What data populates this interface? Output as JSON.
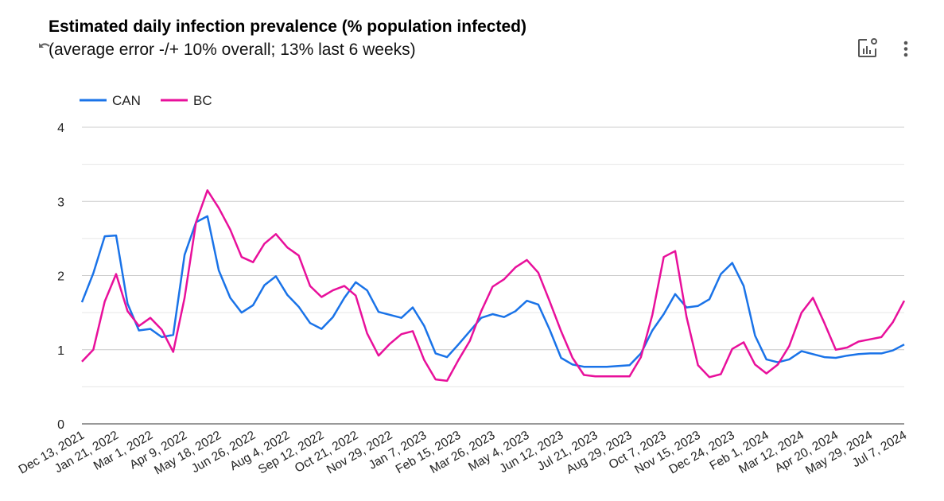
{
  "header": {
    "title": "Estimated daily infection prevalence (% population infected)",
    "subtitle": "(average error -/+ 10% overall; 13% last 6 weeks)",
    "icons": [
      "reset-zoom-icon",
      "chart-settings-icon",
      "more-vert-icon"
    ]
  },
  "chart_data": {
    "type": "line",
    "title": "Estimated daily infection prevalence (% population infected)",
    "subtitle": "(average error -/+ 10% overall; 13% last 6 weeks)",
    "xlabel": "",
    "ylabel": "",
    "ylim": [
      0,
      4
    ],
    "yticks": [
      "0",
      "1",
      "2",
      "3",
      "4"
    ],
    "grid": true,
    "legend": "top-left",
    "xticks": [
      "Dec 13, 2021",
      "Jan 21, 2022",
      "Mar 1, 2022",
      "Apr 9, 2022",
      "May 18, 2022",
      "Jun 26, 2022",
      "Aug 4, 2022",
      "Sep 12, 2022",
      "Oct 21, 2022",
      "Nov 29, 2022",
      "Jan 7, 2023",
      "Feb 15, 2023",
      "Mar 26, 2023",
      "May 4, 2023",
      "Jun 12, 2023",
      "Jul 21, 2023",
      "Aug 29, 2023",
      "Oct 7, 2023",
      "Nov 15, 2023",
      "Dec 24, 2023",
      "Feb 1, 2024",
      "Mar 12, 2024",
      "Apr 20, 2024",
      "May 29, 2024",
      "Jul 7, 2024"
    ],
    "xlim": [
      "2021-12-13",
      "2024-07-07"
    ],
    "x": [
      "2021-12-13",
      "2021-12-26",
      "2022-01-08",
      "2022-01-21",
      "2022-02-03",
      "2022-02-16",
      "2022-03-01",
      "2022-03-14",
      "2022-03-27",
      "2022-04-09",
      "2022-04-22",
      "2022-05-05",
      "2022-05-18",
      "2022-05-31",
      "2022-06-13",
      "2022-06-26",
      "2022-07-09",
      "2022-07-22",
      "2022-08-04",
      "2022-08-17",
      "2022-08-30",
      "2022-09-12",
      "2022-09-25",
      "2022-10-08",
      "2022-10-21",
      "2022-11-03",
      "2022-11-16",
      "2022-11-29",
      "2022-12-12",
      "2022-12-25",
      "2023-01-07",
      "2023-01-20",
      "2023-02-02",
      "2023-02-15",
      "2023-02-28",
      "2023-03-13",
      "2023-03-26",
      "2023-04-08",
      "2023-04-21",
      "2023-05-04",
      "2023-05-17",
      "2023-05-30",
      "2023-06-12",
      "2023-06-25",
      "2023-07-08",
      "2023-07-21",
      "2023-08-03",
      "2023-08-16",
      "2023-08-29",
      "2023-09-11",
      "2023-09-24",
      "2023-10-07",
      "2023-10-20",
      "2023-11-02",
      "2023-11-15",
      "2023-11-28",
      "2023-12-11",
      "2023-12-24",
      "2024-01-06",
      "2024-01-19",
      "2024-02-01",
      "2024-02-14",
      "2024-02-27",
      "2024-03-12",
      "2024-03-25",
      "2024-04-07",
      "2024-04-20",
      "2024-05-03",
      "2024-05-16",
      "2024-05-29",
      "2024-06-11",
      "2024-06-24",
      "2024-07-07"
    ],
    "series": [
      {
        "name": "CAN",
        "color": "#1a73e8",
        "values": [
          1.64,
          2.03,
          2.53,
          2.54,
          1.62,
          1.26,
          1.28,
          1.17,
          1.2,
          2.28,
          2.72,
          2.8,
          2.07,
          1.7,
          1.5,
          1.6,
          1.87,
          1.99,
          1.74,
          1.58,
          1.36,
          1.28,
          1.44,
          1.7,
          1.91,
          1.8,
          1.51,
          1.47,
          1.43,
          1.57,
          1.32,
          0.95,
          0.9,
          1.07,
          1.25,
          1.43,
          1.48,
          1.44,
          1.52,
          1.66,
          1.61,
          1.27,
          0.89,
          0.8,
          0.77,
          0.77,
          0.77,
          0.78,
          0.79,
          0.95,
          1.26,
          1.48,
          1.75,
          1.57,
          1.59,
          1.68,
          2.02,
          2.17,
          1.86,
          1.19,
          0.87,
          0.83,
          0.87,
          0.98,
          0.94,
          0.9,
          0.89,
          0.92,
          0.94,
          0.95,
          0.95,
          0.99,
          1.07
        ]
      },
      {
        "name": "BC",
        "color": "#e8109b",
        "values": [
          0.84,
          1.0,
          1.65,
          2.02,
          1.52,
          1.32,
          1.43,
          1.27,
          0.97,
          1.7,
          2.72,
          3.15,
          2.91,
          2.62,
          2.25,
          2.18,
          2.43,
          2.56,
          2.38,
          2.27,
          1.86,
          1.71,
          1.8,
          1.86,
          1.73,
          1.22,
          0.92,
          1.08,
          1.21,
          1.25,
          0.86,
          0.6,
          0.58,
          0.86,
          1.12,
          1.52,
          1.85,
          1.95,
          2.11,
          2.21,
          2.04,
          1.65,
          1.25,
          0.89,
          0.66,
          0.64,
          0.64,
          0.64,
          0.64,
          0.9,
          1.47,
          2.25,
          2.33,
          1.44,
          0.79,
          0.63,
          0.67,
          1.01,
          1.1,
          0.8,
          0.68,
          0.8,
          1.05,
          1.5,
          1.7,
          1.36,
          1.0,
          1.03,
          1.11,
          1.14,
          1.17,
          1.37,
          1.66
        ]
      }
    ]
  }
}
